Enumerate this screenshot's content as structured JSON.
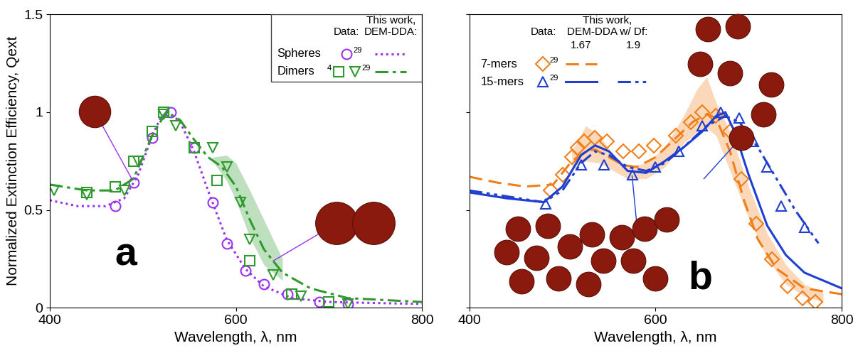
{
  "chart_data": [
    {
      "type": "line",
      "annotation": "a",
      "x_label": "Wavelength, λ, nm",
      "y_label": "Normalized Extinction Efficiency, Qext",
      "xlim": [
        400,
        800
      ],
      "ylim": [
        0,
        1.5
      ],
      "xticks": [
        400,
        600,
        800
      ],
      "yticks": [
        0,
        0.5,
        1,
        1.5
      ],
      "legend_headers": {
        "data": "Data:",
        "model": "This work,\nDEM-DDA:"
      },
      "series": [
        {
          "name": "Spheres",
          "type": "scatter",
          "ref": "29",
          "marker": "circle",
          "color": "#9933ee",
          "x": [
            470,
            490,
            510,
            530,
            555,
            575,
            590,
            610,
            630,
            655,
            690,
            720
          ],
          "values": [
            0.52,
            0.64,
            0.87,
            1.0,
            0.82,
            0.54,
            0.33,
            0.19,
            0.12,
            0.07,
            0.03,
            0.02
          ]
        },
        {
          "name": "Spheres",
          "type": "line",
          "line_style": "dotted",
          "color": "#9933ee",
          "x": [
            400,
            430,
            460,
            480,
            495,
            510,
            520,
            528,
            540,
            555,
            570,
            590,
            610,
            630,
            660,
            700,
            800
          ],
          "values": [
            0.55,
            0.52,
            0.52,
            0.56,
            0.68,
            0.88,
            0.98,
            1.0,
            0.95,
            0.8,
            0.6,
            0.35,
            0.2,
            0.11,
            0.05,
            0.03,
            0.02
          ]
        },
        {
          "name": "Dimers",
          "type": "scatter",
          "ref": "4",
          "marker": "square",
          "color": "#2e9a2e",
          "x": [
            440,
            470,
            490,
            510,
            522,
            555,
            580,
            615,
            660,
            700
          ],
          "values": [
            0.59,
            0.62,
            0.75,
            0.9,
            1.0,
            0.82,
            0.65,
            0.24,
            0.07,
            0.03
          ]
        },
        {
          "name": "Dimers",
          "type": "scatter",
          "ref": "29",
          "marker": "triangle_down",
          "color": "#2e9a2e",
          "x": [
            405,
            440,
            480,
            495,
            522,
            535,
            575,
            590,
            605,
            615,
            640,
            670,
            720
          ],
          "values": [
            0.6,
            0.58,
            0.6,
            0.75,
            0.99,
            0.93,
            0.82,
            0.72,
            0.54,
            0.35,
            0.17,
            0.06,
            0.02
          ]
        },
        {
          "name": "Dimers",
          "type": "line",
          "line_style": "dashdot",
          "color": "#2e9a2e",
          "x": [
            400,
            440,
            470,
            490,
            510,
            525,
            540,
            555,
            570,
            585,
            600,
            615,
            630,
            650,
            680,
            720,
            800
          ],
          "values": [
            0.63,
            0.6,
            0.6,
            0.66,
            0.88,
            1.0,
            0.96,
            0.86,
            0.77,
            0.72,
            0.62,
            0.45,
            0.3,
            0.18,
            0.1,
            0.05,
            0.03
          ],
          "band": {
            "x": [
              575,
              590,
              600,
              615,
              630,
              650
            ],
            "lower": [
              0.75,
              0.65,
              0.55,
              0.36,
              0.22,
              0.14
            ],
            "upper": [
              0.77,
              0.78,
              0.74,
              0.6,
              0.45,
              0.25
            ]
          }
        }
      ]
    },
    {
      "type": "line",
      "annotation": "b",
      "tick_labels": "x",
      "x_label": "Wavelength, λ, nm",
      "xlim": [
        400,
        800
      ],
      "ylim": [
        0,
        1.5
      ],
      "xticks": [
        400,
        600,
        800
      ],
      "yticks": [
        0,
        0.5,
        1,
        1.5
      ],
      "legend_headers": {
        "data": "Data:",
        "model": "This work,\nDEM-DDA w/ Df:"
      },
      "df_values": [
        1.67,
        1.9
      ],
      "series": [
        {
          "name": "7-mers",
          "type": "scatter",
          "ref": "29",
          "marker": "diamond",
          "color": "#f07f1a",
          "x": [
            487,
            500,
            510,
            516,
            523,
            535,
            548,
            565,
            582,
            598,
            622,
            638,
            650,
            665,
            680,
            692,
            708,
            725,
            742,
            758,
            772
          ],
          "values": [
            0.6,
            0.68,
            0.77,
            0.82,
            0.85,
            0.87,
            0.85,
            0.8,
            0.8,
            0.83,
            0.88,
            0.95,
            1.0,
            0.98,
            0.9,
            0.66,
            0.43,
            0.25,
            0.11,
            0.05,
            0.03
          ]
        },
        {
          "name": "7-mers",
          "type": "line",
          "df": 1.67,
          "line_style": "dashed",
          "color": "#f07f1a",
          "x": [
            400,
            430,
            460,
            490,
            510,
            525,
            535,
            550,
            565,
            580,
            600,
            620,
            640,
            655,
            665,
            680,
            695,
            710,
            730,
            760,
            800
          ],
          "values": [
            0.67,
            0.64,
            0.62,
            0.63,
            0.75,
            0.8,
            0.81,
            0.77,
            0.73,
            0.72,
            0.77,
            0.86,
            0.95,
            0.99,
            0.97,
            0.8,
            0.55,
            0.35,
            0.2,
            0.1,
            0.07
          ],
          "band": {
            "x": [
              510,
              525,
              540,
              555,
              570,
              590,
              610,
              630,
              645,
              655,
              665,
              680,
              700,
              720,
              740,
              760,
              780
            ],
            "lower": [
              0.72,
              0.75,
              0.74,
              0.7,
              0.66,
              0.66,
              0.72,
              0.84,
              0.9,
              0.92,
              0.88,
              0.7,
              0.46,
              0.25,
              0.12,
              0.06,
              0.03
            ],
            "upper": [
              0.8,
              0.93,
              0.88,
              0.78,
              0.72,
              0.74,
              0.82,
              0.98,
              1.12,
              1.18,
              1.05,
              0.9,
              0.62,
              0.38,
              0.22,
              0.12,
              0.08
            ]
          }
        },
        {
          "name": "15-mers",
          "type": "scatter",
          "ref": "29",
          "marker": "triangle_up",
          "color": "#1f3fd0",
          "x": [
            482,
            520,
            545,
            575,
            600,
            625,
            650,
            670,
            690,
            705,
            720,
            735,
            760
          ],
          "values": [
            0.53,
            0.73,
            0.73,
            0.68,
            0.72,
            0.8,
            0.93,
            1.0,
            0.97,
            0.85,
            0.72,
            0.52,
            0.41
          ]
        },
        {
          "name": "15-mers",
          "type": "line",
          "df": 1.67,
          "line_style": "solid",
          "color": "#1f3fd0",
          "x": [
            400,
            440,
            480,
            500,
            520,
            535,
            550,
            570,
            590,
            610,
            630,
            650,
            665,
            675,
            685,
            700,
            720,
            740,
            760,
            800
          ],
          "values": [
            0.59,
            0.56,
            0.54,
            0.62,
            0.78,
            0.83,
            0.8,
            0.7,
            0.69,
            0.75,
            0.82,
            0.9,
            0.98,
            1.0,
            0.9,
            0.68,
            0.42,
            0.27,
            0.18,
            0.1
          ]
        },
        {
          "name": "15-mers",
          "type": "line",
          "df": 1.9,
          "line_style": "dashdotdot",
          "color": "#1f3fd0",
          "x": [
            400,
            440,
            480,
            500,
            520,
            535,
            550,
            570,
            590,
            610,
            630,
            655,
            675,
            690,
            710,
            730,
            750,
            775
          ],
          "values": [
            0.6,
            0.57,
            0.54,
            0.6,
            0.74,
            0.8,
            0.78,
            0.72,
            0.7,
            0.74,
            0.82,
            0.93,
            0.98,
            0.95,
            0.82,
            0.66,
            0.5,
            0.33
          ]
        }
      ]
    }
  ]
}
